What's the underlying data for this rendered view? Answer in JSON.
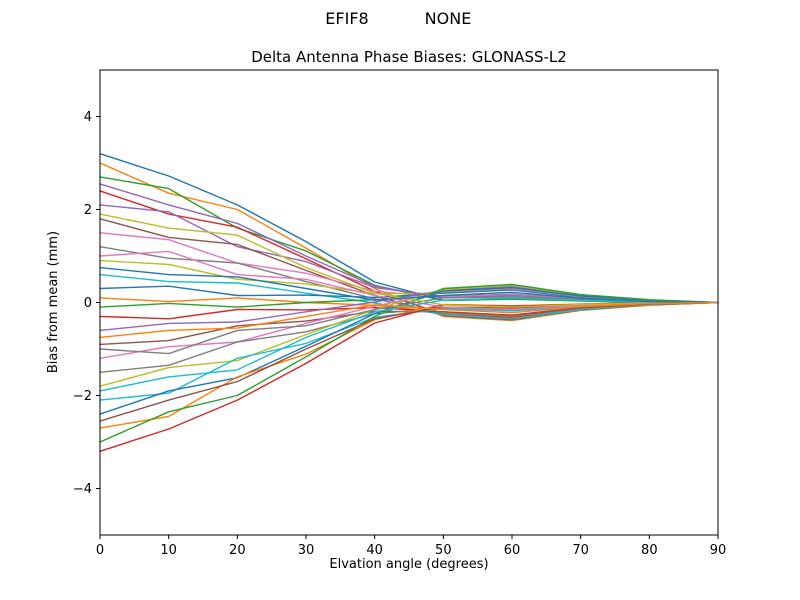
{
  "figure": {
    "title_left": "EFIF8",
    "title_right": "NONE",
    "subtitle": "Delta Antenna Phase Biases: GLONASS-L2"
  },
  "chart_data": {
    "type": "line",
    "title": "EFIF8          NONE",
    "subtitle": "Delta Antenna Phase Biases: GLONASS-L2",
    "xlabel": "Elvation angle (degrees)",
    "ylabel": "Bias from mean (mm)",
    "xlim": [
      0,
      90
    ],
    "ylim": [
      -5,
      5
    ],
    "xticks": [
      0,
      10,
      20,
      30,
      40,
      50,
      60,
      70,
      80,
      90
    ],
    "yticks": [
      -4,
      -2,
      0,
      2,
      4
    ],
    "grid": false,
    "legend": "none",
    "background": "#ffffff",
    "axis_color": "#000000",
    "palette": [
      "#1f77b4",
      "#ff7f0e",
      "#2ca02c",
      "#d62728",
      "#9467bd",
      "#8c564b",
      "#e377c2",
      "#7f7f7f",
      "#bcbd22",
      "#17becf"
    ],
    "x": [
      0,
      10,
      20,
      30,
      40,
      50,
      60,
      70,
      80,
      90
    ],
    "series": [
      {
        "values": [
          3.2,
          2.72,
          2.1,
          1.31,
          0.44,
          0.05,
          0.08,
          0.04,
          0,
          0
        ]
      },
      {
        "values": [
          3.0,
          2.35,
          2.0,
          1.17,
          0.3,
          -0.3,
          -0.39,
          -0.17,
          -0.06,
          0
        ]
      },
      {
        "values": [
          2.7,
          2.45,
          1.6,
          1.11,
          0.37,
          0.04,
          0.07,
          0.03,
          0,
          0
        ]
      },
      {
        "values": [
          2.4,
          1.9,
          1.62,
          0.94,
          0.24,
          -0.25,
          -0.32,
          -0.14,
          -0.05,
          0
        ]
      },
      {
        "values": [
          2.1,
          1.95,
          1.2,
          0.88,
          0.32,
          0.13,
          0.18,
          0.08,
          0.01,
          0
        ]
      },
      {
        "values": [
          1.8,
          1.4,
          1.25,
          0.69,
          0.15,
          -0.28,
          -0.37,
          -0.16,
          -0.05,
          0
        ]
      },
      {
        "values": [
          1.5,
          1.35,
          0.85,
          0.63,
          0.24,
          0.12,
          0.17,
          0.07,
          0.02,
          0
        ]
      },
      {
        "values": [
          1.2,
          0.95,
          0.85,
          0.45,
          0.08,
          -0.23,
          -0.3,
          -0.13,
          -0.04,
          0
        ]
      },
      {
        "values": [
          0.9,
          0.82,
          0.5,
          0.4,
          0.19,
          0.2,
          0.28,
          0.12,
          0.03,
          0
        ]
      },
      {
        "values": [
          0.6,
          0.45,
          0.42,
          0.2,
          -0.01,
          -0.26,
          -0.35,
          -0.15,
          -0.05,
          0
        ]
      },
      {
        "values": [
          0.3,
          0.35,
          0.15,
          0.16,
          0.11,
          0.2,
          0.27,
          0.11,
          0.03,
          0
        ]
      },
      {
        "values": [
          0.1,
          0.02,
          0.1,
          0,
          -0.06,
          -0.21,
          -0.29,
          -0.12,
          -0.04,
          0
        ]
      },
      {
        "values": [
          -0.1,
          -0.02,
          -0.1,
          0,
          0.06,
          0.21,
          0.29,
          0.12,
          0.04,
          0
        ]
      },
      {
        "values": [
          -0.3,
          -0.35,
          -0.15,
          -0.16,
          -0.11,
          -0.2,
          -0.27,
          -0.11,
          -0.03,
          0
        ]
      },
      {
        "values": [
          -0.6,
          -0.45,
          -0.42,
          -0.2,
          0.01,
          0.26,
          0.35,
          0.15,
          0.05,
          0
        ]
      },
      {
        "values": [
          -0.9,
          -0.82,
          -0.5,
          -0.4,
          -0.19,
          -0.2,
          -0.28,
          -0.12,
          -0.03,
          0
        ]
      },
      {
        "values": [
          -1.2,
          -0.95,
          -0.85,
          -0.45,
          -0.08,
          0.23,
          0.3,
          0.13,
          0.04,
          0
        ]
      },
      {
        "values": [
          -1.5,
          -1.35,
          -0.85,
          -0.63,
          -0.24,
          -0.12,
          -0.17,
          -0.07,
          -0.02,
          0
        ]
      },
      {
        "values": [
          -1.8,
          -1.4,
          -1.25,
          -0.69,
          -0.15,
          0.28,
          0.37,
          0.16,
          0.05,
          0
        ]
      },
      {
        "values": [
          -2.1,
          -1.95,
          -1.2,
          -0.88,
          -0.32,
          -0.13,
          -0.18,
          -0.08,
          -0.01,
          0
        ]
      },
      {
        "values": [
          -2.4,
          -1.9,
          -1.62,
          -0.94,
          -0.24,
          0.25,
          0.32,
          0.14,
          0.05,
          0
        ]
      },
      {
        "values": [
          -2.7,
          -2.45,
          -1.6,
          -1.11,
          -0.37,
          -0.04,
          -0.07,
          -0.03,
          0,
          0
        ]
      },
      {
        "values": [
          -3.0,
          -2.35,
          -2.0,
          -1.17,
          -0.3,
          0.3,
          0.39,
          0.17,
          0.06,
          0
        ]
      },
      {
        "values": [
          -3.2,
          -2.72,
          -2.1,
          -1.31,
          -0.44,
          -0.05,
          -0.08,
          -0.04,
          0,
          0
        ]
      },
      {
        "values": [
          2.55,
          2.1,
          1.7,
          1.0,
          0.35,
          0.1,
          0.12,
          0.05,
          0.01,
          0
        ]
      },
      {
        "values": [
          -2.55,
          -2.1,
          -1.7,
          -1.0,
          -0.35,
          -0.1,
          -0.12,
          -0.05,
          -0.01,
          0
        ]
      },
      {
        "values": [
          1.0,
          1.1,
          0.6,
          0.5,
          0.15,
          -0.1,
          -0.15,
          -0.06,
          -0.02,
          0
        ]
      },
      {
        "values": [
          -1.0,
          -1.1,
          -0.6,
          -0.5,
          -0.15,
          0.1,
          0.15,
          0.06,
          0.02,
          0
        ]
      },
      {
        "values": [
          1.9,
          1.6,
          1.45,
          0.75,
          0.2,
          -0.05,
          -0.1,
          -0.04,
          -0.01,
          0
        ]
      },
      {
        "values": [
          -1.9,
          -1.6,
          -1.45,
          -0.75,
          -0.2,
          0.05,
          0.1,
          0.04,
          0.01,
          0
        ]
      },
      {
        "values": [
          0.75,
          0.6,
          0.55,
          0.3,
          0.05,
          0.15,
          0.22,
          0.09,
          0.02,
          0
        ]
      },
      {
        "values": [
          -0.75,
          -0.6,
          -0.55,
          -0.3,
          -0.05,
          -0.15,
          -0.22,
          -0.09,
          -0.02,
          0
        ]
      }
    ]
  }
}
